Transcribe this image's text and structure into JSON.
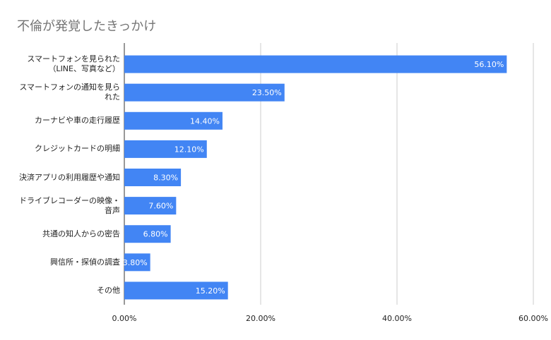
{
  "chart_data": {
    "type": "bar",
    "orientation": "horizontal",
    "title": "不倫が発覚したきっかけ",
    "categories": [
      "スマートフォンを見られた（LINE、写真など）",
      "スマートフォンの通知を見られた",
      "カーナビや車の走行履歴",
      "クレジットカードの明細",
      "決済アプリの利用履歴や通知",
      "ドライブレコーダーの映像・音声",
      "共通の知人からの密告",
      "興信所・探偵の調査",
      "その他"
    ],
    "values": [
      56.1,
      23.5,
      14.4,
      12.1,
      8.3,
      7.6,
      6.8,
      3.8,
      15.2
    ],
    "value_labels": [
      "56.10%",
      "23.50%",
      "14.40%",
      "12.10%",
      "8.30%",
      "7.60%",
      "6.80%",
      "3.80%",
      "15.20%"
    ],
    "color": "#4285f4",
    "xlim": [
      0,
      60
    ],
    "xticks": [
      {
        "value": 0,
        "label": "0.00%"
      },
      {
        "value": 20,
        "label": "20.00%"
      },
      {
        "value": 40,
        "label": "40.00%"
      },
      {
        "value": 60,
        "label": "60.00%"
      }
    ],
    "grid": true
  }
}
